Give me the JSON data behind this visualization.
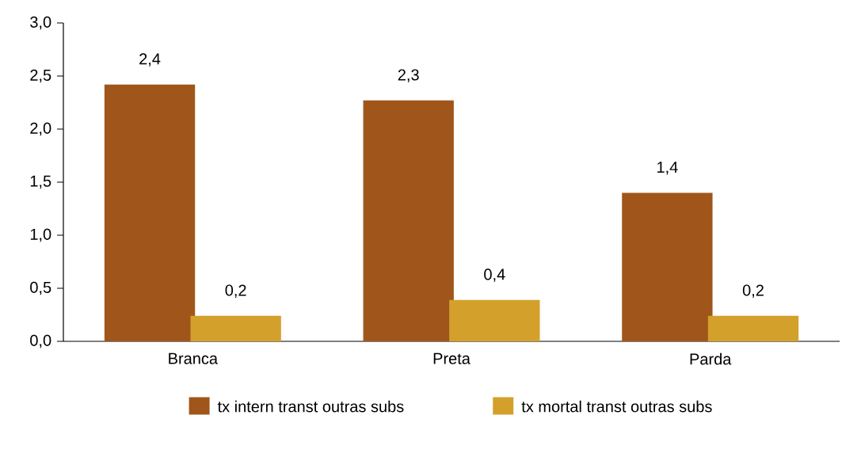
{
  "chart_data": {
    "type": "bar",
    "categories": [
      "Branca",
      "Preta",
      "Parda"
    ],
    "series": [
      {
        "name": "tx intern transt outras subs",
        "color": "#a0561a",
        "values": [
          2.42,
          2.27,
          1.4
        ],
        "value_labels": [
          "2,4",
          "2,3",
          "1,4"
        ]
      },
      {
        "name": "tx mortal transt outras subs",
        "color": "#d3a02b",
        "values": [
          0.24,
          0.39,
          0.24
        ],
        "value_labels": [
          "0,2",
          "0,4",
          "0,2"
        ]
      }
    ],
    "ylim": [
      0,
      3
    ],
    "yticks": [
      {
        "value": 0,
        "label": "0,0"
      },
      {
        "value": 0.5,
        "label": "0,5"
      },
      {
        "value": 1,
        "label": "1,0"
      },
      {
        "value": 1.5,
        "label": "1,5"
      },
      {
        "value": 2,
        "label": "2,0"
      },
      {
        "value": 2.5,
        "label": "2,5"
      },
      {
        "value": 3,
        "label": "3,0"
      }
    ],
    "grid": false,
    "legend": "bottom"
  }
}
